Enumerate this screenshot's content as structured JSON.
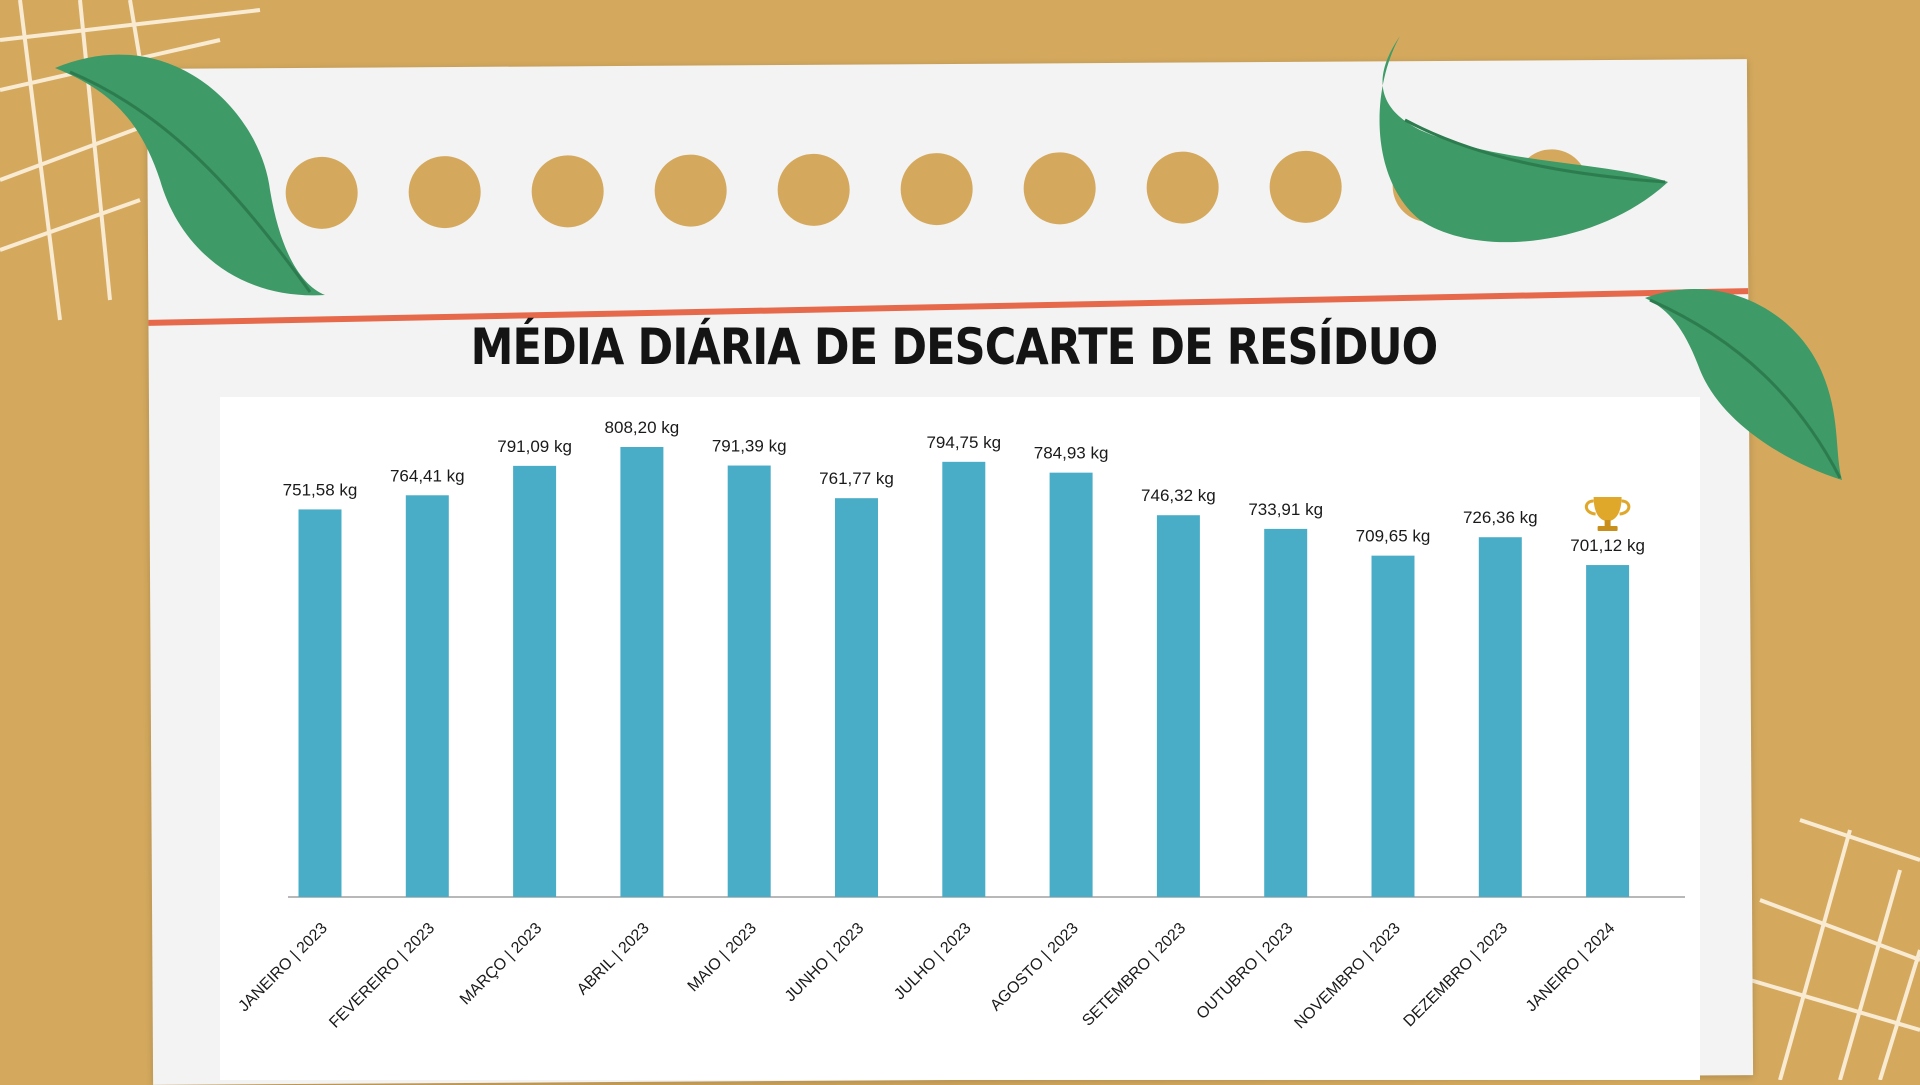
{
  "title": "MÉDIA DIÁRIA DE DESCARTE DE RESÍDUO",
  "colors": {
    "bar": "#4aadc7",
    "background": "#d4a95e",
    "paper": "#f3f3f3",
    "rule_line": "#e5694a",
    "leaf": "#3e9a66"
  },
  "chart_data": {
    "type": "bar",
    "title": "MÉDIA DIÁRIA DE DESCARTE DE RESÍDUO",
    "xlabel": "",
    "ylabel": "",
    "ylim": [
      0,
      808.2
    ],
    "grid": false,
    "legend": "none",
    "categories": [
      "JANEIRO | 2023",
      "FEVEREIRO | 2023",
      "MARÇO | 2023",
      "ABRIL | 2023",
      "MAIO | 2023",
      "JUNHO | 2023",
      "JULHO | 2023",
      "AGOSTO | 2023",
      "SETEMBRO | 2023",
      "OUTUBRO | 2023",
      "NOVEMBRO | 2023",
      "DEZEMBRO | 2023",
      "JANEIRO | 2024"
    ],
    "values": [
      751.58,
      764.41,
      791.09,
      808.2,
      791.39,
      761.77,
      794.75,
      784.93,
      746.32,
      733.91,
      709.65,
      726.36,
      701.12
    ],
    "value_labels": [
      "751,58 kg",
      "764,41 kg",
      "791,09 kg",
      "808,20 kg",
      "791,39 kg",
      "761,77 kg",
      "794,75 kg",
      "784,93 kg",
      "746,32 kg",
      "733,91 kg",
      "709,65 kg",
      "726,36 kg",
      "701,12 kg"
    ],
    "highlight": {
      "category_index": 12,
      "icon": "trophy-icon"
    }
  }
}
